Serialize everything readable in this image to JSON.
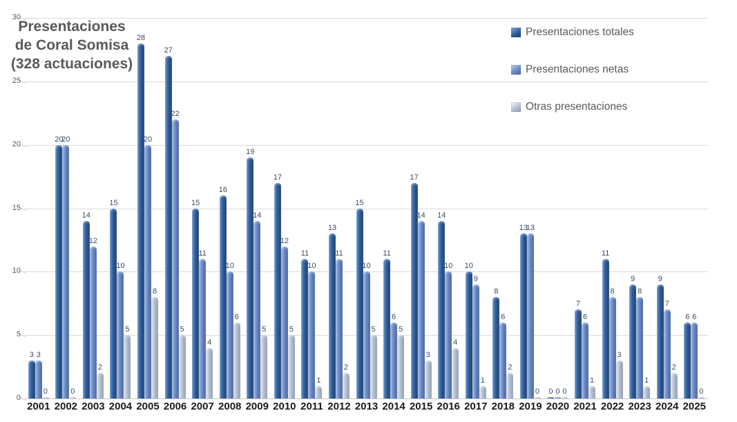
{
  "chart": {
    "title_display": "Presentaciones\nde Coral Somisa\n(328 actuaciones)"
  },
  "colors": {
    "background": "#ffffff",
    "grid": "#d9d9d9",
    "axis_floor": "#c6c6c6",
    "title_text": "#595959",
    "y_axis_text": "#595959",
    "x_axis_text": "#1a1a1a",
    "value_label_text": "#3a4a63",
    "legend_text": "#595959"
  },
  "chart_data": {
    "type": "bar",
    "title": "Presentaciones de Coral Somisa (328 actuaciones)",
    "xlabel": "",
    "ylabel": "",
    "ylim": [
      0,
      30
    ],
    "yticks": [
      0,
      5,
      10,
      15,
      20,
      25,
      30
    ],
    "grid": true,
    "value_labels": true,
    "legend_position": "right-top",
    "categories": [
      "2001",
      "2002",
      "2003",
      "2004",
      "2005",
      "2006",
      "2007",
      "2008",
      "2009",
      "2010",
      "2011",
      "2012",
      "2013",
      "2014",
      "2015",
      "2016",
      "2017",
      "2018",
      "2019",
      "2020",
      "2021",
      "2022",
      "2023",
      "2024",
      "2025"
    ],
    "series": [
      {
        "name": "Presentaciones totales",
        "values": [
          3,
          20,
          14,
          15,
          28,
          27,
          15,
          16,
          19,
          17,
          11,
          13,
          15,
          11,
          17,
          14,
          10,
          8,
          13,
          0,
          7,
          11,
          9,
          9,
          6
        ],
        "color": {
          "light": "#6e95c8",
          "base": "#2f5f9e",
          "dark": "#1d3f6e"
        }
      },
      {
        "name": "Presentaciones netas",
        "values": [
          3,
          20,
          12,
          10,
          20,
          22,
          11,
          10,
          14,
          12,
          10,
          11,
          10,
          6,
          14,
          10,
          9,
          6,
          13,
          0,
          6,
          8,
          8,
          7,
          6
        ],
        "color": {
          "light": "#a9bde2",
          "base": "#6c8cc9",
          "dark": "#47639c"
        }
      },
      {
        "name": "Otras presentaciones",
        "values": [
          0,
          0,
          2,
          5,
          8,
          5,
          4,
          6,
          5,
          5,
          1,
          2,
          5,
          5,
          3,
          4,
          1,
          2,
          0,
          0,
          1,
          3,
          1,
          2,
          0
        ],
        "color": {
          "light": "#e6eaf0",
          "base": "#b7c2d3",
          "dark": "#8e9cb2"
        }
      }
    ]
  }
}
